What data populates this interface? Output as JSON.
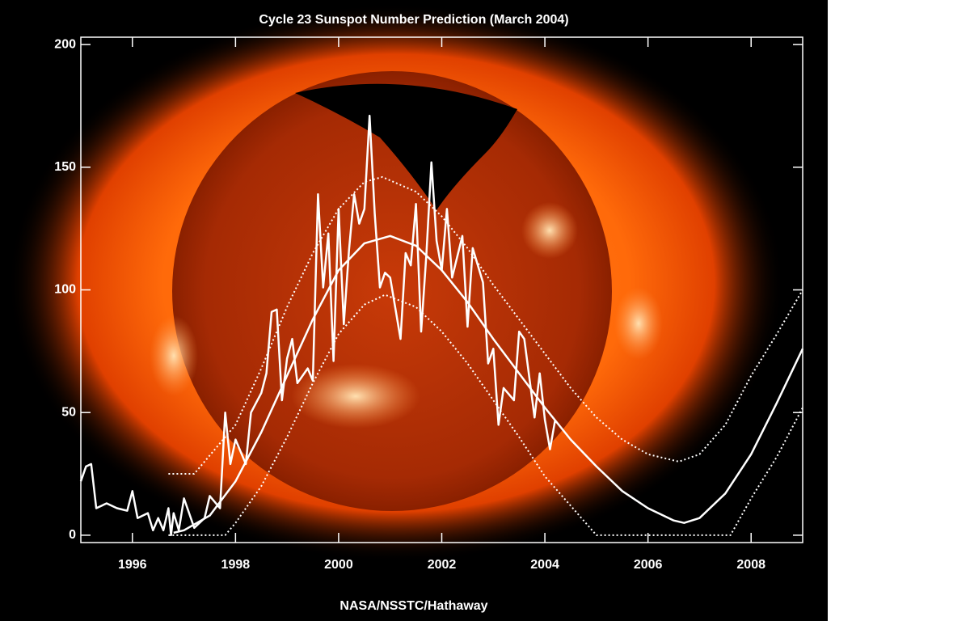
{
  "chart_data": {
    "type": "line",
    "title": "Cycle 23 Sunspot Number Prediction (March 2004)",
    "caption": "NASA/NSSTC/Hathaway",
    "xlim": [
      1995,
      2009
    ],
    "xticks": [
      1996,
      1998,
      2000,
      2002,
      2004,
      2006,
      2008
    ],
    "ylim": [
      -3,
      203
    ],
    "yticks": [
      0,
      50,
      100,
      150,
      200
    ],
    "series": [
      {
        "color": "#ffffff",
        "style": "solid",
        "width": 2.5,
        "x": [
          1995.0,
          1995.1,
          1995.2,
          1995.3,
          1995.5,
          1995.7,
          1995.9,
          1996.0,
          1996.1,
          1996.3,
          1996.4,
          1996.5,
          1996.6,
          1996.7,
          1996.75,
          1996.8,
          1996.9,
          1997.0,
          1997.2,
          1997.4,
          1997.5,
          1997.7,
          1997.8,
          1997.9,
          1998.0,
          1998.2,
          1998.3,
          1998.5,
          1998.6,
          1998.7,
          1998.8,
          1998.9,
          1999.0,
          1999.1,
          1999.2,
          1999.4,
          1999.5,
          1999.6,
          1999.7,
          1999.8,
          1999.9,
          2000.0,
          2000.1,
          2000.2,
          2000.3,
          2000.4,
          2000.5,
          2000.6,
          2000.7,
          2000.8,
          2000.9,
          2001.0,
          2001.2,
          2001.3,
          2001.4,
          2001.5,
          2001.6,
          2001.7,
          2001.8,
          2001.9,
          2002.0,
          2002.1,
          2002.2,
          2002.4,
          2002.5,
          2002.6,
          2002.8,
          2002.9,
          2003.0,
          2003.1,
          2003.2,
          2003.4,
          2003.5,
          2003.6,
          2003.8,
          2003.9,
          2004.0,
          2004.1,
          2004.2
        ],
        "values": [
          22,
          28,
          29,
          11,
          13,
          11,
          10,
          18,
          7,
          9,
          2,
          7,
          2,
          11,
          0,
          9,
          2,
          15,
          3,
          7,
          16,
          11,
          50,
          29,
          39,
          29,
          50,
          58,
          66,
          91,
          92,
          55,
          72,
          80,
          62,
          68,
          63,
          139,
          101,
          123,
          71,
          133,
          86,
          116,
          139,
          127,
          133,
          171,
          131,
          101,
          107,
          105,
          80,
          115,
          110,
          135,
          83,
          114,
          152,
          120,
          108,
          133,
          105,
          122,
          85,
          117,
          103,
          70,
          76,
          45,
          60,
          55,
          83,
          80,
          48,
          66,
          47,
          35,
          47
        ]
      },
      {
        "color": "#ffffff",
        "style": "solid",
        "width": 2.5,
        "x": [
          1996.8,
          1997,
          1997.5,
          1998,
          1998.5,
          1999,
          1999.5,
          2000,
          2000.5,
          2001,
          2001.5,
          2002,
          2002.5,
          2003,
          2003.5,
          2004,
          2004.5,
          2005,
          2005.5,
          2006,
          2006.5,
          2006.7,
          2007,
          2007.5,
          2008,
          2008.5,
          2009
        ],
        "values": [
          1,
          2,
          8,
          22,
          42,
          65,
          88,
          108,
          119,
          122,
          118,
          108,
          95,
          80,
          66,
          52,
          39,
          28,
          18,
          11,
          6,
          5,
          7,
          17,
          33,
          54,
          76
        ]
      },
      {
        "color": "#ffffff",
        "style": "dotted",
        "width": 2,
        "x": [
          1996.7,
          1997.2,
          1998,
          1998.5,
          1999,
          1999.5,
          2000,
          2000.5,
          2000.85,
          2001.5,
          2002,
          2002.5,
          2003,
          2003.5,
          2004,
          2004.5,
          2005,
          2005.5,
          2006,
          2006.6,
          2007,
          2007.5,
          2008,
          2008.5,
          2009
        ],
        "values": [
          25,
          25,
          45,
          68,
          93,
          115,
          133,
          144,
          146,
          140,
          130,
          117,
          102,
          88,
          74,
          60,
          48,
          39,
          33,
          30,
          33,
          45,
          65,
          82,
          100
        ]
      },
      {
        "color": "#ffffff",
        "style": "dotted",
        "width": 2,
        "x": [
          1996.7,
          1997.8,
          1998,
          1998.5,
          1999,
          1999.5,
          2000,
          2000.5,
          2000.9,
          2001.5,
          2002,
          2002.5,
          2003,
          2003.5,
          2004,
          2004.5,
          2005,
          2007.6,
          2008,
          2008.5,
          2009
        ],
        "values": [
          0,
          0,
          5,
          20,
          40,
          62,
          82,
          94,
          98,
          93,
          83,
          70,
          55,
          40,
          24,
          12,
          0,
          0,
          15,
          32,
          52
        ]
      }
    ]
  }
}
